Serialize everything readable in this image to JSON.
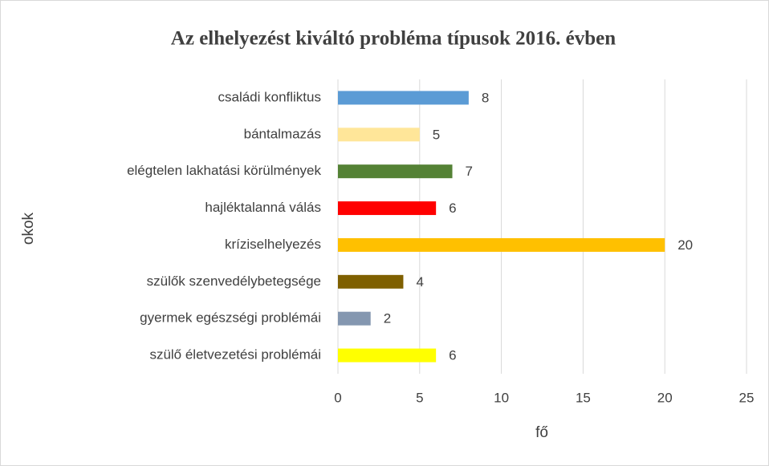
{
  "chart_data": {
    "type": "barh",
    "title": "Az elhelyezést kiváltó probléma típusok 2016. évben",
    "categories": [
      "családi konfliktus",
      "bántalmazás",
      "elégtelen lakhatási körülmények",
      "hajléktalanná válás",
      "kríziselhelyezés",
      "szülők szenvedélybetegsége",
      "gyermek egészségi problémái",
      "szülő életvezetési problémái"
    ],
    "values": [
      8,
      5,
      7,
      6,
      20,
      4,
      2,
      6
    ],
    "colors": [
      "#5b9bd5",
      "#ffe699",
      "#548235",
      "#ff0000",
      "#ffc000",
      "#7f6000",
      "#8497b0",
      "#ffff00"
    ],
    "xlabel": "fő",
    "ylabel": "okok",
    "xlim": [
      0,
      25
    ],
    "xticks": [
      0,
      5,
      10,
      15,
      20,
      25
    ],
    "grid": true
  }
}
